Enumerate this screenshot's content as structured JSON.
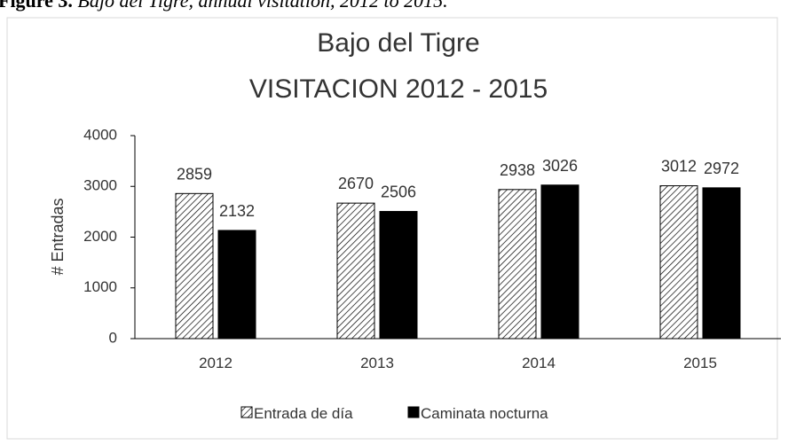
{
  "caption_label": "Figure 3.",
  "caption": "Bajo del Tigre, annual visitation, 2012 to 2015.",
  "chart_data": {
    "type": "bar",
    "title": [
      "Bajo del Tigre",
      "VISITACION 2012 - 2015"
    ],
    "ylabel": "# Entradas",
    "categories": [
      "2012",
      "2013",
      "2014",
      "2015"
    ],
    "series": [
      {
        "name": "Entrada de día",
        "color": "#000000",
        "pattern": "diagonal",
        "values": [
          2859,
          2670,
          2938,
          3012
        ]
      },
      {
        "name": "Caminata nocturna",
        "color": "#000000",
        "values": [
          2132,
          2506,
          3026,
          2972
        ]
      }
    ],
    "ylim": [
      0,
      4000
    ],
    "yticks": [
      0,
      1000,
      2000,
      3000,
      4000
    ],
    "legend": "bottom",
    "grid": false
  }
}
